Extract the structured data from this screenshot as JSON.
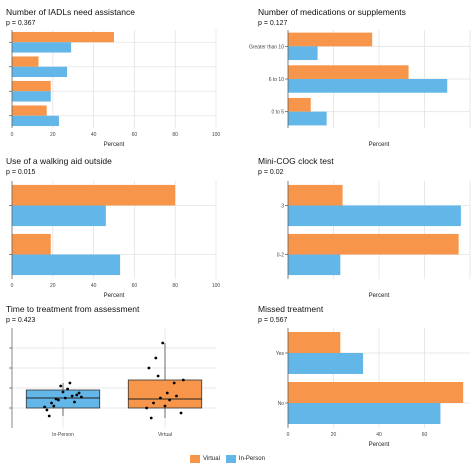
{
  "colors": {
    "virtual": "#F7964A",
    "in_person": "#62B7E8",
    "grid": "#E3E3E3",
    "box_edge": "#333333"
  },
  "legend": {
    "virtual": "Virtual",
    "in_person": "In-Person"
  },
  "chart_data": [
    {
      "id": "iadl",
      "type": "bar",
      "orientation": "horizontal",
      "title": "Number of IADLs need assistance",
      "pvalue": "p = 0.367",
      "xlabel": "Percent",
      "xlim": [
        0,
        100
      ],
      "xticks": [
        0,
        20,
        40,
        60,
        80,
        100
      ],
      "categories": [
        "",
        "",
        "",
        ""
      ],
      "series": [
        {
          "name": "Virtual",
          "values": [
            50,
            13,
            19,
            17
          ]
        },
        {
          "name": "In-Person",
          "values": [
            29,
            27,
            19,
            23
          ]
        }
      ]
    },
    {
      "id": "meds",
      "type": "bar",
      "orientation": "horizontal",
      "title": "Number of medications or supplements",
      "pvalue": "p = 0.127",
      "xlabel": "Percent",
      "xlim": [
        0,
        80
      ],
      "xticks": [],
      "categories": [
        "Greater than 10",
        "6 to 10",
        "0 to 5"
      ],
      "series": [
        {
          "name": "Virtual",
          "values": [
            37,
            53,
            10
          ]
        },
        {
          "name": "In-Person",
          "values": [
            13,
            70,
            17
          ]
        }
      ]
    },
    {
      "id": "walk",
      "type": "bar",
      "orientation": "horizontal",
      "title": "Use of a walking aid outside",
      "pvalue": "p = 0.015",
      "xlabel": "Percent",
      "xlim": [
        0,
        100
      ],
      "xticks": [
        0,
        20,
        40,
        60,
        80,
        100
      ],
      "categories": [
        "",
        ""
      ],
      "series": [
        {
          "name": "Virtual",
          "values": [
            80,
            19
          ]
        },
        {
          "name": "In-Person",
          "values": [
            46,
            53
          ]
        }
      ]
    },
    {
      "id": "cog",
      "type": "bar",
      "orientation": "horizontal",
      "title": "Mini-COG clock test",
      "pvalue": "p = 0.02",
      "xlabel": "Percent",
      "xlim": [
        0,
        80
      ],
      "xticks": [],
      "categories": [
        "3",
        "0-2"
      ],
      "series": [
        {
          "name": "Virtual",
          "values": [
            24,
            75
          ]
        },
        {
          "name": "In-Person",
          "values": [
            76,
            23
          ]
        }
      ]
    },
    {
      "id": "time",
      "type": "box",
      "title": "Time to treatment from assessment",
      "pvalue": "p = 0.423",
      "categories": [
        "In-Person",
        "Virtual"
      ],
      "ylim": [
        0,
        10
      ],
      "boxes": [
        {
          "name": "In-Person",
          "min": 1.2,
          "q1": 2.0,
          "median": 3.0,
          "q3": 3.8,
          "max": 4.5,
          "points": [
            2.1,
            2.5,
            2.8,
            3.0,
            3.2,
            3.5,
            1.8,
            2.2,
            4.2,
            3.9,
            2.6,
            3.1,
            1.2,
            2.9,
            3.6,
            4.5,
            3.3
          ]
        },
        {
          "name": "Virtual",
          "min": 1.0,
          "q1": 2.0,
          "median": 2.9,
          "q3": 4.8,
          "max": 8.5,
          "points": [
            2.0,
            2.5,
            3.0,
            3.5,
            4.5,
            1.5,
            6.0,
            7.0,
            8.5,
            2.8,
            3.2,
            4.8,
            1.0,
            5.2,
            2.2
          ]
        }
      ]
    },
    {
      "id": "missed",
      "type": "bar",
      "orientation": "horizontal",
      "title": "Missed treatment",
      "pvalue": "p = 0.567",
      "xlabel": "Percent",
      "xlim": [
        0,
        80
      ],
      "xticks": [
        0,
        20,
        40,
        60
      ],
      "categories": [
        "Yes",
        "No"
      ],
      "series": [
        {
          "name": "Virtual",
          "values": [
            23,
            77
          ]
        },
        {
          "name": "In-Person",
          "values": [
            33,
            67
          ]
        }
      ]
    }
  ]
}
